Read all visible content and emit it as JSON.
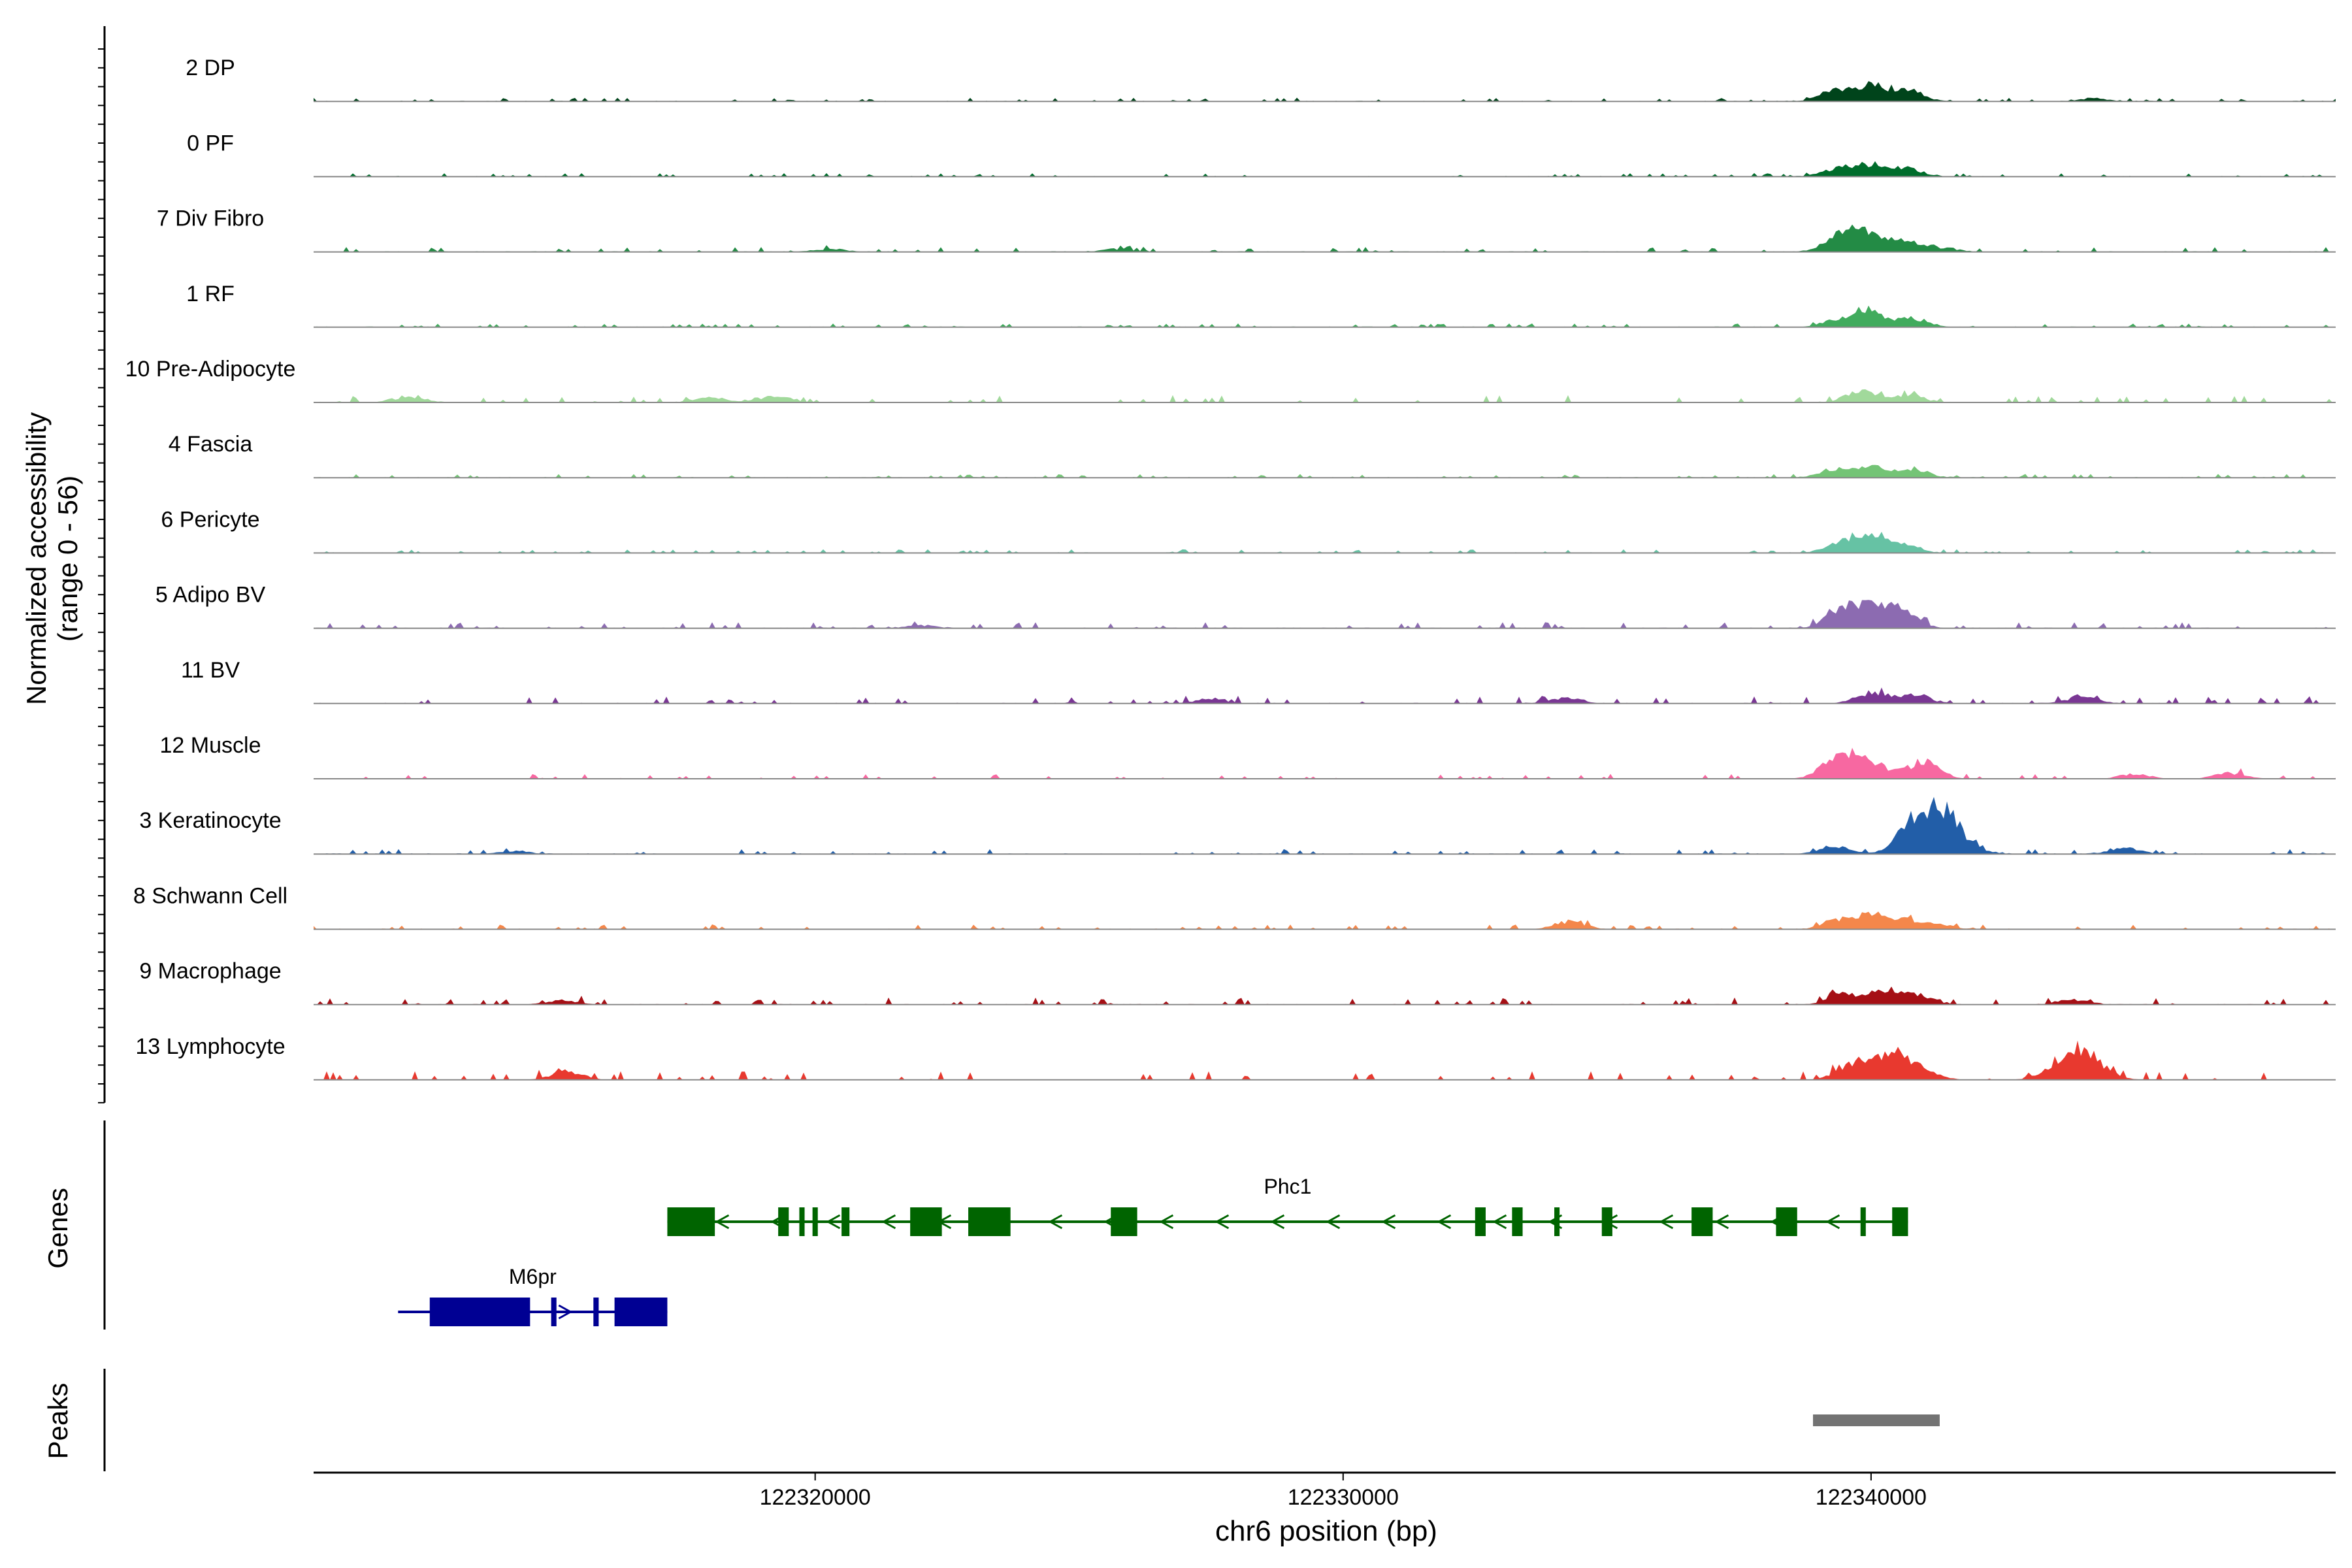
{
  "chart_data": {
    "type": "area",
    "title": "",
    "ylabel_line1": "Normalized accessibility",
    "ylabel_line2": "(range 0 - 56)",
    "ylim": [
      0,
      56
    ],
    "xlabel": "chr6 position (bp)",
    "x_range": [
      122310500,
      122348800
    ],
    "x_ticks": [
      122320000,
      122330000,
      122340000
    ],
    "x_tick_labels": [
      "122320000",
      "122330000",
      "122340000"
    ],
    "genes_label": "Genes",
    "peaks_label": "Peaks",
    "tracks": [
      {
        "name": "2 DP",
        "color": "#00441b",
        "bg": [
          1,
          2
        ],
        "peaks": [
          [
            122340000,
            17
          ],
          [
            122339300,
            10
          ],
          [
            122340700,
            12
          ],
          [
            122344200,
            3
          ]
        ]
      },
      {
        "name": "0 PF",
        "color": "#006d2c",
        "bg": [
          1,
          2
        ],
        "peaks": [
          [
            122340000,
            12
          ],
          [
            122339400,
            9
          ],
          [
            122340700,
            8
          ]
        ]
      },
      {
        "name": "7 Div Fibro",
        "color": "#238b45",
        "bg": [
          1,
          3
        ],
        "peaks": [
          [
            122339900,
            20
          ],
          [
            122339400,
            14
          ],
          [
            122340600,
            12
          ],
          [
            122341300,
            4
          ],
          [
            122320300,
            3
          ],
          [
            122325700,
            3
          ]
        ]
      },
      {
        "name": "1 RF",
        "color": "#41ab5d",
        "bg": [
          1,
          2
        ],
        "peaks": [
          [
            122340000,
            15
          ],
          [
            122339400,
            8
          ],
          [
            122340800,
            9
          ]
        ]
      },
      {
        "name": "10 Pre-Adipocyte",
        "color": "#a1d99b",
        "bg": [
          1,
          5
        ],
        "peaks": [
          [
            122339800,
            12
          ],
          [
            122340700,
            8
          ],
          [
            122319200,
            6
          ],
          [
            122312300,
            6
          ],
          [
            122318000,
            5
          ]
        ]
      },
      {
        "name": "4 Fascia",
        "color": "#74c476",
        "bg": [
          1,
          2
        ],
        "peaks": [
          [
            122340000,
            11
          ],
          [
            122339300,
            8
          ],
          [
            122340800,
            9
          ]
        ]
      },
      {
        "name": "6 Pericyte",
        "color": "#66c2a4",
        "bg": [
          1,
          2
        ],
        "peaks": [
          [
            122340000,
            18
          ],
          [
            122339400,
            9
          ],
          [
            122340600,
            8
          ]
        ]
      },
      {
        "name": "5 Adipo BV",
        "color": "#8c6bb1",
        "bg": [
          1,
          4
        ],
        "peaks": [
          [
            122340000,
            22
          ],
          [
            122339400,
            12
          ],
          [
            122340600,
            14
          ],
          [
            122322000,
            3
          ]
        ]
      },
      {
        "name": "11 BV",
        "color": "#7a3794",
        "bg": [
          1,
          5
        ],
        "peaks": [
          [
            122340000,
            11
          ],
          [
            122340800,
            10
          ],
          [
            122334200,
            6
          ],
          [
            122327500,
            5
          ],
          [
            122344000,
            7
          ]
        ]
      },
      {
        "name": "12 Muscle",
        "color": "#f768a1",
        "bg": [
          0,
          3
        ],
        "peaks": [
          [
            122339800,
            22
          ],
          [
            122339300,
            14
          ],
          [
            122341000,
            18
          ],
          [
            122346800,
            6
          ],
          [
            122345000,
            5
          ]
        ]
      },
      {
        "name": "3 Keratinocyte",
        "color": "#225ea8",
        "bg": [
          1,
          3
        ],
        "peaks": [
          [
            122341300,
            45
          ],
          [
            122340700,
            17
          ],
          [
            122339300,
            8
          ],
          [
            122344800,
            6
          ],
          [
            122314300,
            3
          ]
        ]
      },
      {
        "name": "8 Schwann Cell",
        "color": "#f4874b",
        "bg": [
          1,
          3
        ],
        "peaks": [
          [
            122340000,
            14
          ],
          [
            122339400,
            9
          ],
          [
            122340700,
            9
          ],
          [
            122334300,
            8
          ],
          [
            122341300,
            4
          ]
        ]
      },
      {
        "name": "9 Macrophage",
        "color": "#a50f15",
        "bg": [
          1,
          5
        ],
        "peaks": [
          [
            122340300,
            14
          ],
          [
            122339500,
            10
          ],
          [
            122340900,
            9
          ],
          [
            122343800,
            5
          ],
          [
            122315200,
            4
          ]
        ]
      },
      {
        "name": "13 Lymphocyte",
        "color": "#e8392f",
        "bg": [
          0,
          6
        ],
        "peaks": [
          [
            122343900,
            33
          ],
          [
            122340600,
            23
          ],
          [
            122339600,
            13
          ],
          [
            122340100,
            11
          ],
          [
            122315300,
            9
          ]
        ]
      }
    ],
    "genes": [
      {
        "name": "Phc1",
        "color": "#006400",
        "start": 122317200,
        "end": 122340700,
        "strand": "-",
        "exons": [
          [
            122317200,
            122318100
          ],
          [
            122319300,
            122319500
          ],
          [
            122319700,
            122319800
          ],
          [
            122319950,
            122320050
          ],
          [
            122320500,
            122320650
          ],
          [
            122321800,
            122322400
          ],
          [
            122322900,
            122323700
          ],
          [
            122325600,
            122326100
          ],
          [
            122332500,
            122332700
          ],
          [
            122333200,
            122333400
          ],
          [
            122334000,
            122334100
          ],
          [
            122334900,
            122335100
          ],
          [
            122336600,
            122337000
          ],
          [
            122338200,
            122338600
          ],
          [
            122339800,
            122339900
          ],
          [
            122340400,
            122340700
          ]
        ]
      },
      {
        "name": "M6pr",
        "color": "#000093",
        "start": 122312100,
        "end": 122317200,
        "strand": "+",
        "exons": [
          [
            122312700,
            122314600
          ],
          [
            122315000,
            122315100
          ],
          [
            122315800,
            122315900
          ],
          [
            122316200,
            122317200
          ]
        ]
      }
    ],
    "peak_regions": [
      [
        122338900,
        122341300
      ]
    ]
  }
}
